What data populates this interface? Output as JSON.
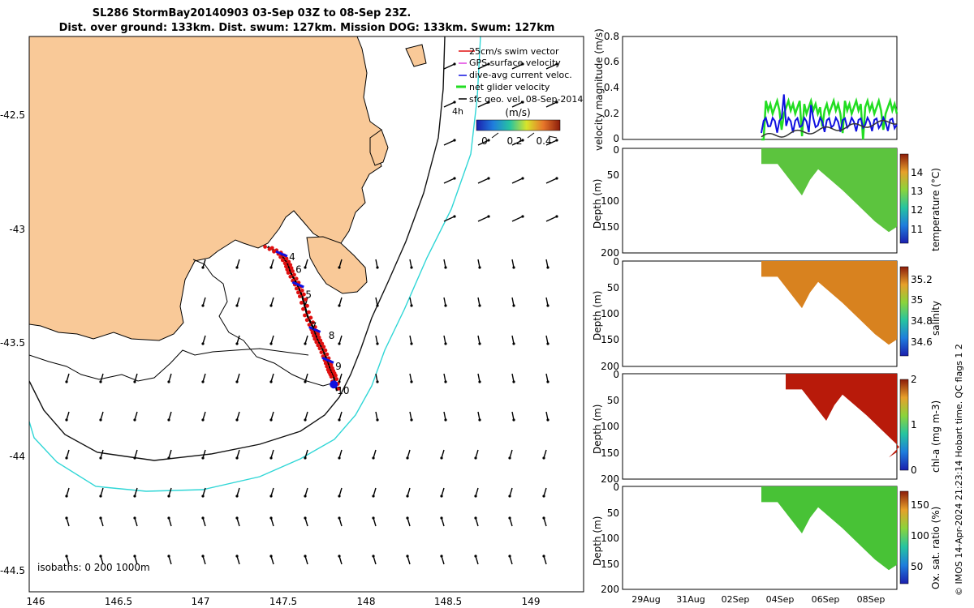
{
  "title_line1": "SL286 StormBay20140903 03-Sep 03Z to 08-Sep 23Z.",
  "title_line2": "Dist. over ground: 133km. Dist. swum: 127km. Mission DOG: 133km. Swum: 127km",
  "colors": {
    "land": "#f9c998",
    "isobath_200": "#111111",
    "isobath_1000": "#2fd6d6",
    "track": "#e01010",
    "dive_current": "#1010e0",
    "net_velocity": "#22dd22",
    "gps_velocity": "#e040e0"
  },
  "map": {
    "legend": {
      "items": [
        {
          "label": "25cm/s swim vector",
          "color": "#e01010"
        },
        {
          "label": "GPS surface velocity",
          "color": "#e040e0"
        },
        {
          "label": "dive-avg current veloc.",
          "color": "#1010e0"
        },
        {
          "label": "net glider velocity",
          "color": "#22dd22"
        },
        {
          "label": "sfc geo. vel. 08-Sep-2014",
          "color": "#000000"
        }
      ],
      "extra": "4h",
      "colorbar_title": "(m/s)",
      "colorbar_ticks": [
        "0",
        "0.2",
        "0.4"
      ]
    },
    "isobath_label": "isobaths: 0   200  1000m",
    "lon_ticks": [
      "146",
      "146.5",
      "147",
      "147.5",
      "148",
      "148.5",
      "149"
    ],
    "lat_ticks": [
      "-42.5",
      "-43",
      "-43.5",
      "-44",
      "-44.5"
    ],
    "day_labels": [
      "4",
      "5",
      "6",
      "7",
      "8",
      "9",
      "10"
    ]
  },
  "panels": {
    "velocity": {
      "ylabel": "velocity magnitude (m/s)",
      "yticks": [
        "0",
        "0.2",
        "0.4",
        "0.6",
        "0.8"
      ]
    },
    "temperature": {
      "ylabel": "Depth (m)",
      "cbar_label": "temperature (°C)",
      "cbar_ticks": [
        "11",
        "12",
        "13",
        "14"
      ],
      "yticks": [
        "0",
        "50",
        "100",
        "150",
        "200"
      ]
    },
    "salinity": {
      "ylabel": "Depth (m)",
      "cbar_label": "salinity",
      "cbar_ticks": [
        "34.6",
        "34.8",
        "35",
        "35.2"
      ],
      "yticks": [
        "0",
        "50",
        "100",
        "150",
        "200"
      ]
    },
    "chla": {
      "ylabel": "Depth (m)",
      "cbar_label": "chl-a (mg m-3)",
      "cbar_ticks": [
        "0",
        "1",
        "2"
      ],
      "yticks": [
        "0",
        "50",
        "100",
        "150",
        "200"
      ]
    },
    "oxygen": {
      "ylabel": "Depth (m)",
      "cbar_label": "Ox. sat. ratio (%)",
      "cbar_ticks": [
        "50",
        "100",
        "150"
      ],
      "yticks": [
        "0",
        "50",
        "100",
        "150",
        "200"
      ]
    },
    "time_ticks": [
      "29Aug",
      "31Aug",
      "02Sep",
      "04Sep",
      "06Sep",
      "08Sep"
    ]
  },
  "credit": "© IMOS 14-Apr-2024 21:23:14 Hobart time. QC flags 1  2",
  "chart_data": {
    "type": "scatter",
    "title": "SL286 StormBay20140903 03-Sep 03Z to 08-Sep 23Z.",
    "xlabel": "",
    "ylabel": "",
    "xlim": [
      145.98,
      149.33
    ],
    "ylim": [
      -44.55,
      -42.2
    ],
    "track": {
      "lon": [
        147.42,
        147.5,
        147.54,
        147.56,
        147.6,
        147.63,
        147.66,
        147.7,
        147.72,
        147.75,
        147.78,
        147.8,
        147.82,
        147.84
      ],
      "lat": [
        -43.09,
        -43.12,
        -43.16,
        -43.2,
        -43.25,
        -43.3,
        -43.38,
        -43.44,
        -43.48,
        -43.52,
        -43.57,
        -43.61,
        -43.64,
        -43.7
      ]
    },
    "time_series": {
      "time_axis": [
        "29Aug",
        "31Aug",
        "02Sep",
        "04Sep",
        "06Sep",
        "08Sep"
      ],
      "depth_range": [
        0,
        200
      ],
      "velocity_range": [
        0,
        0.8
      ],
      "temperature_range": [
        10.5,
        15
      ],
      "salinity_range": [
        34.5,
        35.35
      ],
      "chla_range": [
        0,
        2
      ],
      "oxygen_range": [
        25,
        170
      ]
    }
  }
}
